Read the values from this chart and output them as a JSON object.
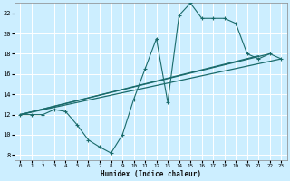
{
  "xlabel": "Humidex (Indice chaleur)",
  "bg_color": "#cceeff",
  "grid_color": "#ffffff",
  "line_color": "#1a6b6b",
  "xlim": [
    -0.5,
    23.5
  ],
  "ylim": [
    7.5,
    23.0
  ],
  "xticks": [
    0,
    1,
    2,
    3,
    4,
    5,
    6,
    7,
    8,
    9,
    10,
    11,
    12,
    13,
    14,
    15,
    16,
    17,
    18,
    19,
    20,
    21,
    22,
    23
  ],
  "yticks": [
    8,
    10,
    12,
    14,
    16,
    18,
    20,
    22
  ],
  "line1_x": [
    0,
    1,
    2,
    3,
    4,
    5,
    6,
    7,
    8,
    9,
    10,
    11,
    12,
    13,
    14,
    15,
    16,
    17,
    18,
    19,
    20,
    21,
    22,
    23
  ],
  "line1_y": [
    12,
    12,
    12,
    12.5,
    12.3,
    11.0,
    9.5,
    8.8,
    8.2,
    10.0,
    13.5,
    16.5,
    19.5,
    13.2,
    21.8,
    23.0,
    21.5,
    21.5,
    21.5,
    21.0,
    18.0,
    17.5,
    18.0,
    17.5
  ],
  "line2_x": [
    0,
    22
  ],
  "line2_y": [
    12,
    18
  ],
  "line3_x": [
    0,
    23
  ],
  "line3_y": [
    12,
    17.5
  ],
  "line4_x": [
    0,
    21
  ],
  "line4_y": [
    12,
    17.8
  ]
}
